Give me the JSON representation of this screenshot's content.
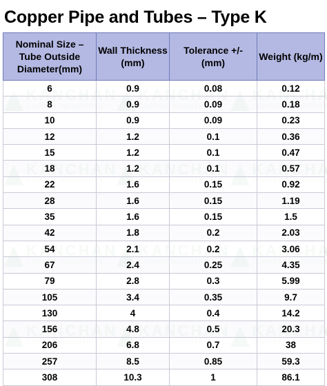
{
  "title": "Copper Pipe and Tubes – Type K",
  "watermark": {
    "brand": "KANCHAN",
    "subtitle": "COPPER INDUSTRIES"
  },
  "table": {
    "headers": [
      "Nominal Size – Tube Outside Diameter(mm)",
      "Wall Thickness (mm)",
      "Tolerance +/- (mm)",
      "Weight (kg/m)"
    ],
    "rows": [
      [
        "6",
        "0.9",
        "0.08",
        "0.12"
      ],
      [
        "8",
        "0.9",
        "0.09",
        "0.18"
      ],
      [
        "10",
        "0.9",
        "0.09",
        "0.23"
      ],
      [
        "12",
        "1.2",
        "0.1",
        "0.36"
      ],
      [
        "15",
        "1.2",
        "0.1",
        "0.47"
      ],
      [
        "18",
        "1.2",
        "0.1",
        "0.57"
      ],
      [
        "22",
        "1.6",
        "0.15",
        "0.92"
      ],
      [
        "28",
        "1.6",
        "0.15",
        "1.19"
      ],
      [
        "35",
        "1.6",
        "0.15",
        "1.5"
      ],
      [
        "42",
        "1.8",
        "0.2",
        "2.03"
      ],
      [
        "54",
        "2.1",
        "0.2",
        "3.06"
      ],
      [
        "67",
        "2.4",
        "0.25",
        "4.35"
      ],
      [
        "79",
        "2.8",
        "0.3",
        "5.99"
      ],
      [
        "105",
        "3.4",
        "0.35",
        "9.7"
      ],
      [
        "130",
        "4",
        "0.4",
        "14.2"
      ],
      [
        "156",
        "4.8",
        "0.5",
        "20.3"
      ],
      [
        "206",
        "6.8",
        "0.7",
        "38"
      ],
      [
        "257",
        "8.5",
        "0.85",
        "59.3"
      ],
      [
        "308",
        "10.3",
        "1",
        "86.1"
      ]
    ]
  }
}
